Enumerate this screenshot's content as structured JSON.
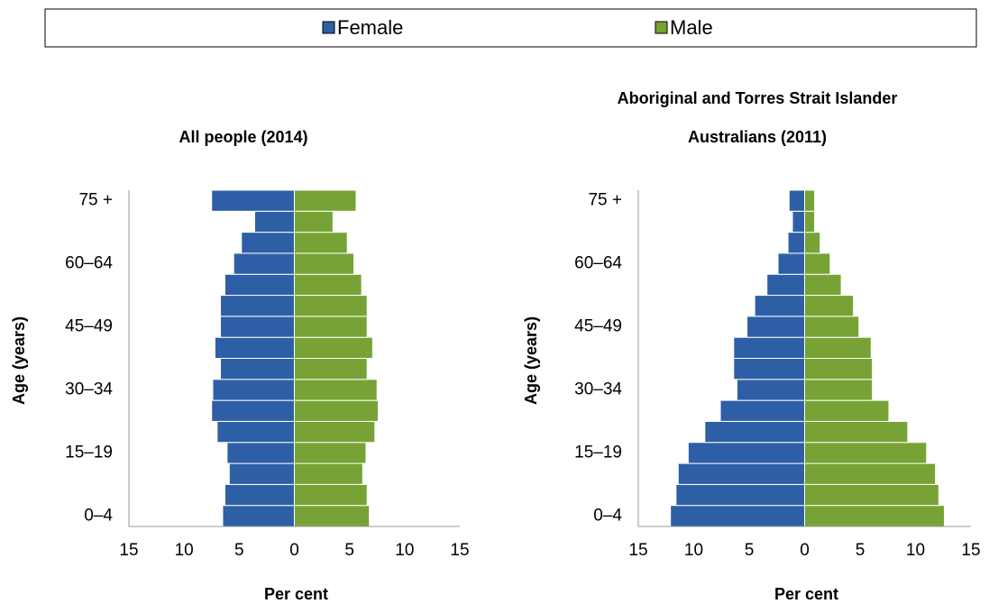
{
  "chart_data": [
    {
      "type": "pyramid",
      "title": [
        "All people (2014)"
      ],
      "categories": [
        "0–4",
        null,
        null,
        "15–19",
        null,
        null,
        "30–34",
        null,
        null,
        "45–49",
        null,
        null,
        "60–64",
        null,
        null,
        "75 +"
      ],
      "series": [
        {
          "name": "Female",
          "color": "#2e5fa6",
          "values": [
            -6.5,
            -6.3,
            -5.9,
            -6.1,
            -7.0,
            -7.5,
            -7.4,
            -6.7,
            -7.2,
            -6.7,
            -6.7,
            -6.3,
            -5.5,
            -4.8,
            -3.6,
            -7.5
          ]
        },
        {
          "name": "Male",
          "color": "#77a336",
          "values": [
            6.8,
            6.6,
            6.2,
            6.5,
            7.3,
            7.6,
            7.5,
            6.6,
            7.1,
            6.6,
            6.6,
            6.1,
            5.4,
            4.8,
            3.5,
            5.6
          ]
        }
      ],
      "xlim": [
        -15,
        15
      ],
      "xticks": [
        {
          "value": -15,
          "label": "15"
        },
        {
          "value": -10,
          "label": "10"
        },
        {
          "value": -5,
          "label": "5"
        },
        0,
        5,
        10,
        15
      ],
      "x_label": "Per cent",
      "y_label": "Age (years)"
    },
    {
      "type": "pyramid",
      "title": [
        "Aboriginal and Torres Strait Islander",
        "Australians (2011)"
      ],
      "categories": [
        "0–4",
        null,
        null,
        "15–19",
        null,
        null,
        "30–34",
        null,
        null,
        "45–49",
        null,
        null,
        "60–64",
        null,
        null,
        "75 +"
      ],
      "series": [
        {
          "color": "#2e5fa6",
          "values": [
            -12.1,
            -11.6,
            -11.4,
            -10.5,
            -9.0,
            -7.6,
            -6.1,
            -6.4,
            -6.4,
            -5.2,
            -4.5,
            -3.4,
            -2.4,
            -1.5,
            -1.1,
            -1.4
          ]
        },
        {
          "color": "#77a336",
          "values": [
            12.6,
            12.1,
            11.8,
            11.0,
            9.3,
            7.6,
            6.1,
            6.1,
            6.0,
            4.9,
            4.4,
            3.3,
            2.3,
            1.4,
            0.9,
            0.9
          ]
        }
      ],
      "xlim": [
        -15,
        15
      ],
      "xticks": [
        {
          "value": -15,
          "label": "15"
        },
        {
          "value": -10,
          "label": "10"
        },
        {
          "value": -5,
          "label": "5"
        },
        0,
        5,
        10,
        15
      ],
      "x_label": "Per cent",
      "y_label": "Age (years)"
    }
  ]
}
